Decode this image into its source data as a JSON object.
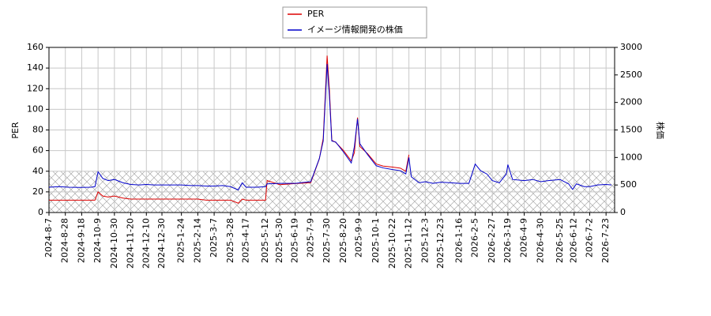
{
  "chart_data": {
    "type": "line",
    "y_label": "PER",
    "y2_label": "株価",
    "x": [
      "2024-8-7",
      "2024-8-20",
      "2024-9-1",
      "2024-9-15",
      "2024-9-30",
      "2024-10-5",
      "2024-10-9",
      "2024-10-15",
      "2024-10-22",
      "2024-10-30",
      "2024-11-10",
      "2024-11-20",
      "2024-12-1",
      "2024-12-10",
      "2024-12-20",
      "2024-12-30",
      "2025-1-10",
      "2025-1-24",
      "2025-2-5",
      "2025-2-14",
      "2025-2-25",
      "2025-3-7",
      "2025-3-18",
      "2025-3-28",
      "2025-4-7",
      "2025-4-12",
      "2025-4-17",
      "2025-5-1",
      "2025-5-12",
      "2025-5-14",
      "2025-5-30",
      "2025-6-19",
      "2025-7-9",
      "2025-7-20",
      "2025-7-25",
      "2025-7-30",
      "2025-8-2",
      "2025-8-5",
      "2025-8-10",
      "2025-8-20",
      "2025-8-30",
      "2025-9-3",
      "2025-9-7",
      "2025-9-10",
      "2025-9-20",
      "2025-10-1",
      "2025-10-10",
      "2025-10-22",
      "2025-11-1",
      "2025-11-8",
      "2025-11-12",
      "2025-11-15",
      "2025-11-25",
      "2025-12-3",
      "2025-12-13",
      "2025-12-23",
      "2026-1-5",
      "2026-1-16",
      "2026-1-28",
      "2026-2-5",
      "2026-2-12",
      "2026-2-20",
      "2026-2-27",
      "2026-3-8",
      "2026-3-17",
      "2026-3-19",
      "2026-3-25",
      "2026-4-9",
      "2026-4-20",
      "2026-4-30",
      "2026-5-10",
      "2026-5-25",
      "2026-6-5",
      "2026-6-10",
      "2026-6-15",
      "2026-6-25",
      "2026-7-2",
      "2026-7-12",
      "2026-7-23",
      "2026-7-30"
    ],
    "series": [
      {
        "name": "PER",
        "color": "#dd0000",
        "axis": "y",
        "values": [
          12,
          12,
          12,
          12,
          12,
          12,
          20,
          16,
          15,
          16,
          14,
          13,
          13,
          13,
          13,
          13,
          13,
          13,
          13,
          13,
          12,
          12,
          12,
          12,
          9,
          13,
          12,
          12,
          12,
          31,
          27,
          28,
          29,
          52,
          72,
          152,
          118,
          70,
          68,
          60,
          50,
          58,
          92,
          64,
          57,
          47,
          45,
          44,
          43,
          40,
          56,
          null,
          null,
          null,
          null,
          null,
          null,
          null,
          null,
          null,
          null,
          null,
          null,
          null,
          null,
          null,
          null,
          null,
          null,
          null,
          null,
          null,
          null,
          null,
          null,
          null,
          null,
          null,
          null,
          null
        ]
      },
      {
        "name": "イメージ情報開発の株価",
        "color": "#0000cc",
        "axis": "y2",
        "values": [
          460,
          470,
          460,
          455,
          460,
          470,
          740,
          620,
          580,
          600,
          540,
          510,
          500,
          510,
          500,
          500,
          500,
          500,
          490,
          490,
          480,
          480,
          490,
          470,
          410,
          540,
          460,
          460,
          470,
          520,
          530,
          530,
          560,
          980,
          1300,
          2700,
          2100,
          1300,
          1280,
          1100,
          900,
          1200,
          1700,
          1250,
          1050,
          850,
          810,
          780,
          760,
          700,
          1000,
          650,
          540,
          560,
          530,
          550,
          540,
          530,
          530,
          880,
          760,
          700,
          580,
          540,
          700,
          870,
          600,
          580,
          600,
          560,
          580,
          600,
          520,
          420,
          520,
          470,
          470,
          500,
          510,
          500
        ]
      }
    ],
    "xlim": [
      "2024-8-7",
      "2026-8-3"
    ],
    "xticks": [
      "2024-8-7",
      "2024-8-28",
      "2024-9-18",
      "2024-10-9",
      "2024-10-30",
      "2024-11-20",
      "2024-12-10",
      "2024-12-30",
      "2025-1-24",
      "2025-2-14",
      "2025-3-7",
      "2025-3-28",
      "2025-4-17",
      "2025-5-12",
      "2025-5-30",
      "2025-6-19",
      "2025-7-9",
      "2025-7-30",
      "2025-8-20",
      "2025-9-9",
      "2025-10-1",
      "2025-10-22",
      "2025-11-12",
      "2025-12-3",
      "2025-12-23",
      "2026-1-16",
      "2026-2-5",
      "2026-2-27",
      "2026-3-19",
      "2026-4-9",
      "2026-4-30",
      "2026-5-25",
      "2026-6-12",
      "2026-7-2",
      "2026-7-23"
    ],
    "ylim": [
      0,
      160
    ],
    "yticks": [
      0,
      20,
      40,
      60,
      80,
      100,
      120,
      140,
      160
    ],
    "y2lim": [
      0,
      3000
    ],
    "y2ticks": [
      0,
      500,
      1000,
      1500,
      2000,
      2500,
      3000
    ],
    "shaded_band": [
      0,
      40
    ],
    "grid": true,
    "legend": "top"
  }
}
